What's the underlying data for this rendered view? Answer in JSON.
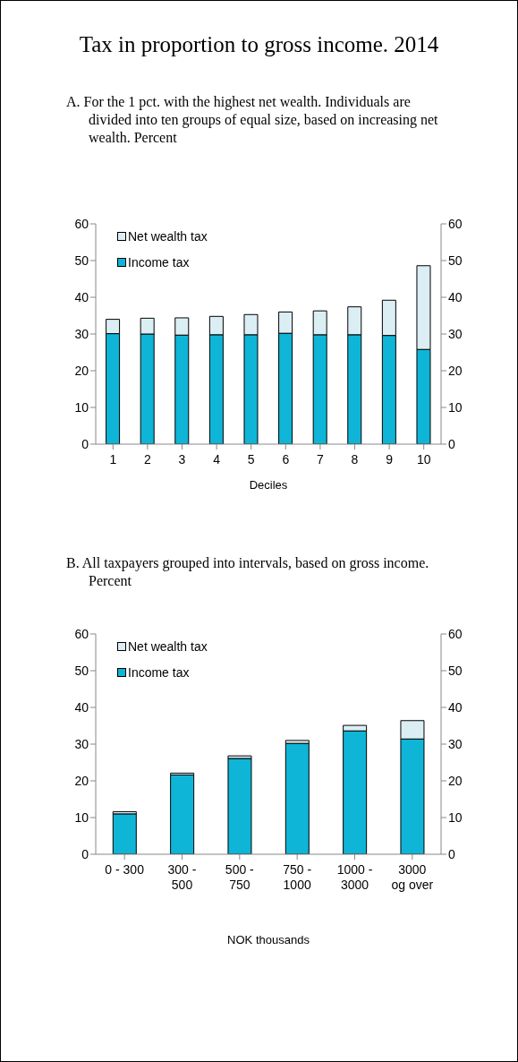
{
  "chart_data": [
    {
      "type": "bar",
      "title": "Tax in proportion to gross income. 2014",
      "subtitle": "A. For the 1 pct. with the highest net wealth. Individuals are divided into ten groups of equal size, based on increasing net wealth. Percent",
      "xlabel": "Deciles",
      "categories": [
        "1",
        "2",
        "3",
        "4",
        "5",
        "6",
        "7",
        "8",
        "9",
        "10"
      ],
      "series": [
        {
          "name": "Income tax",
          "color": "#0fb5d6",
          "values": [
            30.1,
            30.0,
            29.7,
            29.8,
            29.8,
            30.2,
            29.8,
            29.8,
            29.6,
            25.8
          ]
        },
        {
          "name": "Net wealth tax",
          "color": "#dbeef4",
          "values": [
            3.9,
            4.3,
            4.7,
            5.0,
            5.5,
            5.8,
            6.5,
            7.6,
            9.6,
            22.8
          ]
        }
      ],
      "stacked": true,
      "ylim": [
        0,
        60
      ],
      "yticks": [
        0,
        10,
        20,
        30,
        40,
        50,
        60
      ],
      "y2lim": [
        0,
        60
      ],
      "y2ticks": [
        0,
        10,
        20,
        30,
        40,
        50,
        60
      ],
      "legend": "top left",
      "grid": false
    },
    {
      "type": "bar",
      "subtitle": "B. All taxpayers grouped into intervals, based on gross income. Percent",
      "xlabel": "NOK thousands",
      "categories": [
        "0 - 300",
        "300 -\n500",
        "500 -\n750",
        "750 -\n1000",
        "1000 -\n3000",
        "3000\nog over"
      ],
      "series": [
        {
          "name": "Income tax",
          "color": "#0fb5d6",
          "values": [
            11.0,
            21.6,
            26.1,
            30.2,
            33.6,
            31.4
          ]
        },
        {
          "name": "Net wealth tax",
          "color": "#dbeef4",
          "values": [
            0.6,
            0.5,
            0.7,
            0.8,
            1.5,
            5.0
          ]
        }
      ],
      "stacked": true,
      "ylim": [
        0,
        60
      ],
      "yticks": [
        0,
        10,
        20,
        30,
        40,
        50,
        60
      ],
      "y2lim": [
        0,
        60
      ],
      "y2ticks": [
        0,
        10,
        20,
        30,
        40,
        50,
        60
      ],
      "legend": "top left",
      "grid": false
    }
  ]
}
